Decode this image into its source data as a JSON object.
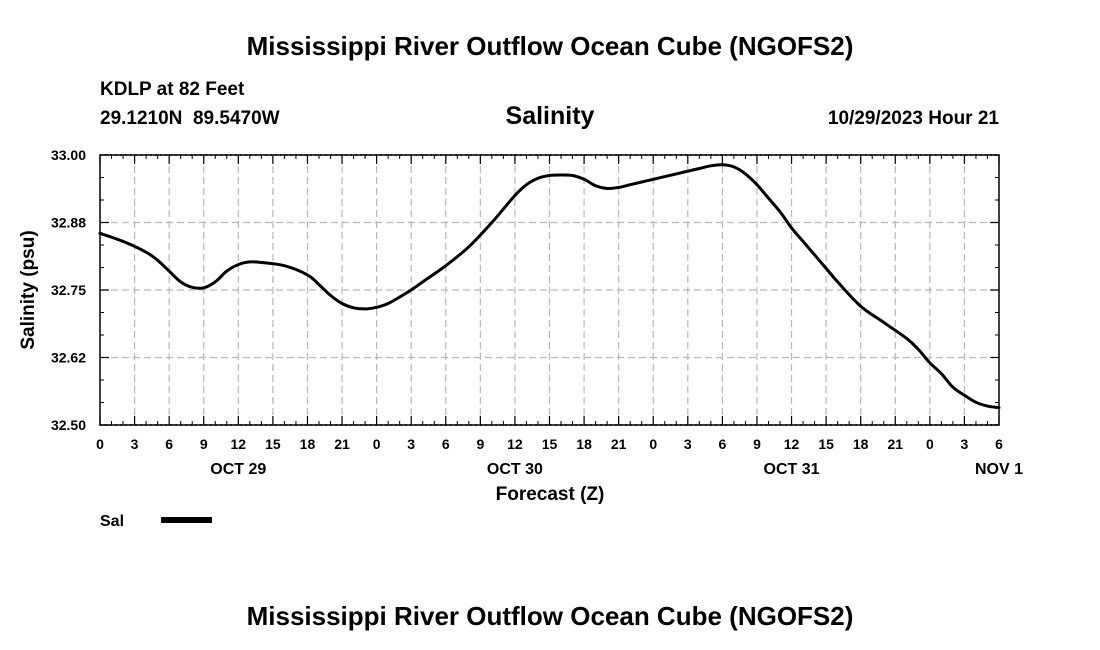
{
  "chart_data": {
    "type": "line",
    "title": "Mississippi River Outflow Ocean Cube (NGOFS2)",
    "footer_title": "Mississippi River Outflow Ocean Cube (NGOFS2)",
    "station": "KDLP at 82 Feet",
    "coordinates": "29.1210N  89.5470W",
    "variable": "Salinity",
    "timestamp": "10/29/2023 Hour 21",
    "xlabel": "Forecast (Z)",
    "ylabel": "Salinity (psu)",
    "ylim": [
      32.5,
      33.0
    ],
    "xlim_hours": [
      0,
      78
    ],
    "y_ticks": [
      {
        "value": 32.5,
        "label": "32.50"
      },
      {
        "value": 32.625,
        "label": "32.62"
      },
      {
        "value": 32.75,
        "label": "32.75"
      },
      {
        "value": 32.875,
        "label": "32.88"
      },
      {
        "value": 33.0,
        "label": "33.00"
      }
    ],
    "x_tick_labels": [
      "0",
      "3",
      "6",
      "9",
      "12",
      "15",
      "18",
      "21",
      "0",
      "3",
      "6",
      "9",
      "12",
      "15",
      "18",
      "21",
      "0",
      "3",
      "6",
      "9",
      "12",
      "15",
      "18",
      "21",
      "0",
      "3",
      "6"
    ],
    "date_labels": [
      {
        "label": "OCT 29",
        "hour": 12
      },
      {
        "label": "OCT 30",
        "hour": 36
      },
      {
        "label": "OCT 31",
        "hour": 60
      },
      {
        "label": "NOV 1",
        "hour": 78
      }
    ],
    "grid": true,
    "legend": {
      "position": "bottom-left",
      "entries": [
        {
          "name": "Sal",
          "color": "#000000"
        }
      ]
    },
    "series": [
      {
        "name": "Sal",
        "color": "#000000",
        "x_hours": [
          0,
          2,
          4,
          5,
          6,
          7,
          8,
          9,
          10,
          11,
          12,
          13,
          14,
          16,
          18,
          19,
          20,
          21,
          22,
          23,
          24,
          25,
          26,
          27,
          28,
          30,
          32,
          34,
          36,
          37,
          38,
          39,
          40,
          41,
          42,
          43,
          44,
          45,
          46,
          47,
          48,
          50,
          52,
          53,
          54,
          55,
          56,
          57,
          58,
          59,
          60,
          61,
          62,
          63,
          64,
          66,
          68,
          70,
          71,
          72,
          73,
          74,
          75,
          76,
          77,
          78
        ],
        "values": [
          32.855,
          32.84,
          32.82,
          32.805,
          32.785,
          32.765,
          32.755,
          32.754,
          32.765,
          32.785,
          32.797,
          32.802,
          32.801,
          32.795,
          32.778,
          32.76,
          32.74,
          32.725,
          32.717,
          32.715,
          32.718,
          32.725,
          32.737,
          32.75,
          32.765,
          32.795,
          32.83,
          32.875,
          32.925,
          32.945,
          32.957,
          32.962,
          32.963,
          32.962,
          32.955,
          32.943,
          32.938,
          32.94,
          32.945,
          32.95,
          32.955,
          32.965,
          32.975,
          32.98,
          32.982,
          32.978,
          32.965,
          32.945,
          32.92,
          32.895,
          32.865,
          32.84,
          32.815,
          32.79,
          32.765,
          32.72,
          32.69,
          32.66,
          32.64,
          32.615,
          32.595,
          32.57,
          32.555,
          32.542,
          32.535,
          32.532
        ]
      }
    ]
  }
}
